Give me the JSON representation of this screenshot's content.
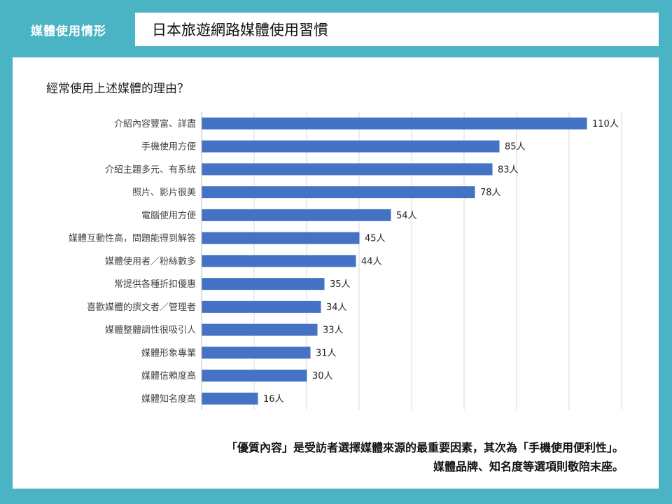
{
  "header": {
    "tag": "媒體使用情形",
    "title": "日本旅遊網路媒體使用習慣"
  },
  "question": "經常使用上述媒體的理由？",
  "chart_data": {
    "type": "bar",
    "orientation": "horizontal",
    "categories": [
      "介紹內容豐富、詳盡",
      "手機使用方便",
      "介紹主題多元、有系統",
      "照片、影片很美",
      "電腦使用方便",
      "媒體互動性高，問題能得到解答",
      "媒體使用者／粉絲數多",
      "常提供各種折扣優惠",
      "喜歡媒體的撰文者／管理者",
      "媒體整體調性很吸引人",
      "媒體形象專業",
      "媒體信賴度高",
      "媒體知名度高"
    ],
    "values": [
      110,
      85,
      83,
      78,
      54,
      45,
      44,
      35,
      34,
      33,
      31,
      30,
      16
    ],
    "value_labels": [
      "110人",
      "85人",
      "83人",
      "78人",
      "54人",
      "45人",
      "44人",
      "35人",
      "34人",
      "33人",
      "31人",
      "30人",
      "16人"
    ],
    "unit": "人",
    "xlim": [
      0,
      120
    ],
    "grid": true,
    "bar_color": "#4472c4"
  },
  "summary": {
    "line1": "「優質內容」是受訪者選擇媒體來源的最重要因素，其次為「手機使用便利性」。",
    "line2": "媒體品牌、知名度等選項則敬陪末座。"
  }
}
